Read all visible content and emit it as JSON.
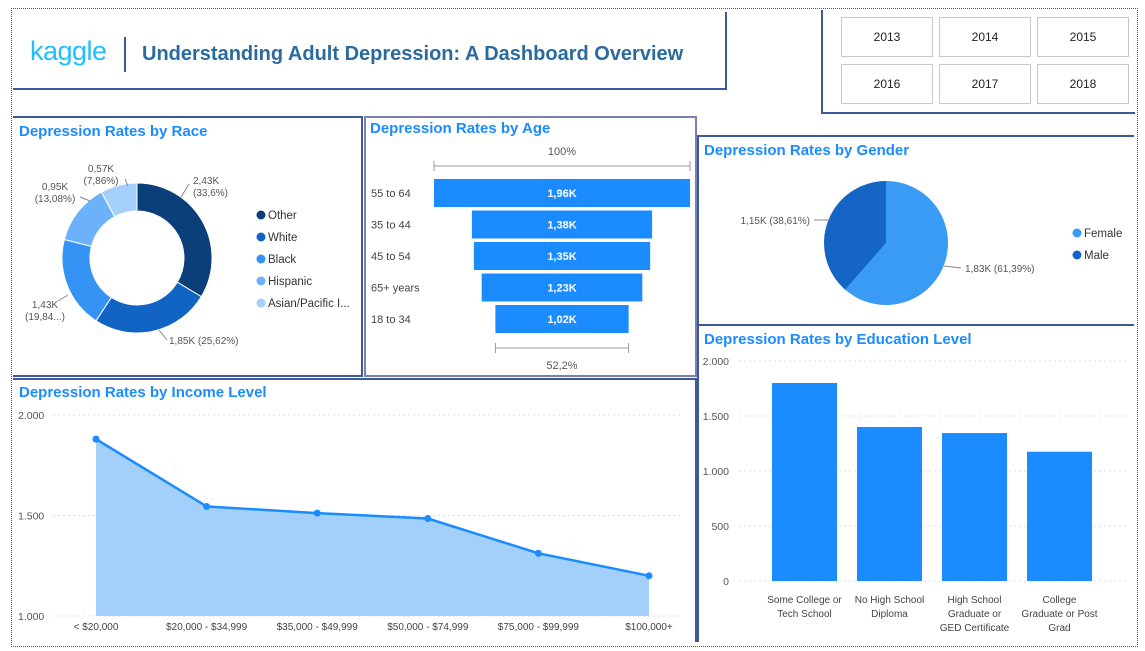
{
  "header": {
    "logo_text": "kaggle",
    "title": "Understanding Adult Depression: A Dashboard Overview"
  },
  "years": [
    "2013",
    "2014",
    "2015",
    "2016",
    "2017",
    "2018"
  ],
  "colors": {
    "accent": "#1a8cff",
    "title_blue": "#1a8cff",
    "header_title": "#2b6a9f",
    "border": "#3b5a9a",
    "area_fill": "#a3d0fb"
  },
  "chart_data": [
    {
      "type": "pie",
      "variant": "donut",
      "title": "Depression Rates by Race",
      "legend_position": "right",
      "slices": [
        {
          "label": "Other",
          "value": 2.43,
          "display": "2,43K",
          "percent": "(33,6%)",
          "color": "#0a3f7a"
        },
        {
          "label": "White",
          "value": 1.85,
          "display": "1,85K (25,62%)",
          "percent": "",
          "color": "#1163c4"
        },
        {
          "label": "Black",
          "value": 1.43,
          "display": "1,43K",
          "percent": "(19,84...)",
          "color": "#3493f5"
        },
        {
          "label": "Hispanic",
          "value": 0.95,
          "display": "0,95K",
          "percent": "(13,08%)",
          "color": "#6cb2fa"
        },
        {
          "label": "Asian/Pacific I...",
          "value": 0.57,
          "display": "0,57K",
          "percent": "(7,86%)",
          "color": "#a5d0fb"
        }
      ]
    },
    {
      "type": "bar",
      "variant": "funnel",
      "title": "Depression Rates by Age",
      "top_label": "100%",
      "bottom_label": "52,2%",
      "categories": [
        "55 to 64",
        "35 to 44",
        "45 to 54",
        "65+ years",
        "18 to 34"
      ],
      "values": [
        1.96,
        1.38,
        1.35,
        1.23,
        1.02
      ],
      "value_labels": [
        "1,96K",
        "1,38K",
        "1,35K",
        "1,23K",
        "1,02K"
      ]
    },
    {
      "type": "pie",
      "title": "Depression Rates by Gender",
      "legend_position": "right",
      "slices": [
        {
          "label": "Female",
          "value": 1.83,
          "display": "1,83K (61,39%)",
          "color": "#3a9bf5"
        },
        {
          "label": "Male",
          "value": 1.15,
          "display": "1,15K (38,61%)",
          "color": "#1566c4"
        }
      ]
    },
    {
      "type": "area",
      "title": "Depression Rates by Income Level",
      "categories": [
        "< $20,000",
        "$20,000 - $34,999",
        "$35,000 - $49,999",
        "$50,000 - $74,999",
        "$75,000 - $99,999",
        "$100,000+"
      ],
      "values": [
        1880,
        1545,
        1512,
        1485,
        1312,
        1200
      ],
      "ylim": [
        1000,
        2000
      ],
      "yticks": [
        1000,
        1500,
        2000
      ],
      "ytick_labels": [
        "1.000",
        "1.500",
        "2.000"
      ],
      "grid": true
    },
    {
      "type": "bar",
      "title": "Depression Rates by Education Level",
      "categories": [
        [
          "Some College or",
          "Tech School"
        ],
        [
          "No High School",
          "Diploma"
        ],
        [
          "High School",
          "Graduate or",
          "GED Certificate"
        ],
        [
          "College",
          "Graduate or Post",
          "Grad"
        ]
      ],
      "values": [
        1800,
        1400,
        1345,
        1175
      ],
      "ylim": [
        0,
        2000
      ],
      "yticks": [
        0,
        500,
        1000,
        1500,
        2000
      ],
      "ytick_labels": [
        "0",
        "500",
        "1.000",
        "1.500",
        "2.000"
      ],
      "grid": true
    }
  ]
}
